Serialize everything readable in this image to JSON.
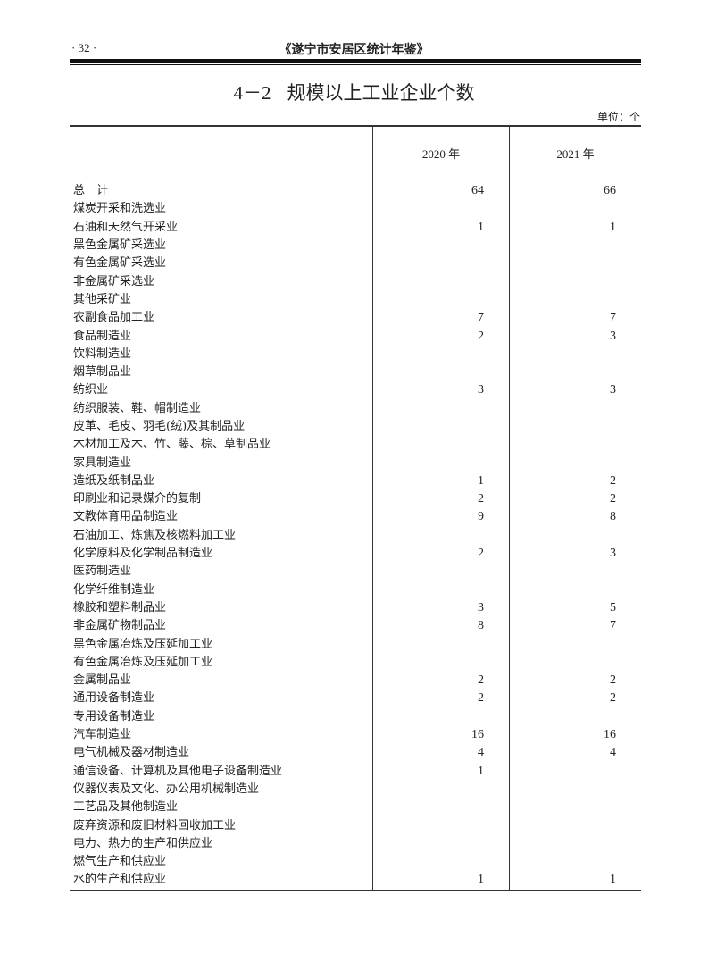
{
  "header": {
    "page_number": "· 32 ·",
    "book_title": "《遂宁市安居区统计年鉴》"
  },
  "table_title": {
    "number": "4－2",
    "text": "规模以上工业企业个数"
  },
  "unit": "单位：个",
  "columns": [
    "",
    "2020 年",
    "2021 年"
  ],
  "rows": [
    {
      "name": "总　计",
      "y2020": "64",
      "y2021": "66"
    },
    {
      "name": "煤炭开采和洗选业",
      "y2020": "",
      "y2021": ""
    },
    {
      "name": "石油和天然气开采业",
      "y2020": "1",
      "y2021": "1"
    },
    {
      "name": "黑色金属矿采选业",
      "y2020": "",
      "y2021": ""
    },
    {
      "name": "有色金属矿采选业",
      "y2020": "",
      "y2021": ""
    },
    {
      "name": "非金属矿采选业",
      "y2020": "",
      "y2021": ""
    },
    {
      "name": "其他采矿业",
      "y2020": "",
      "y2021": ""
    },
    {
      "name": "农副食品加工业",
      "y2020": "7",
      "y2021": "7"
    },
    {
      "name": "食品制造业",
      "y2020": "2",
      "y2021": "3"
    },
    {
      "name": "饮料制造业",
      "y2020": "",
      "y2021": ""
    },
    {
      "name": "烟草制品业",
      "y2020": "",
      "y2021": ""
    },
    {
      "name": "纺织业",
      "y2020": "3",
      "y2021": "3"
    },
    {
      "name": "纺织服装、鞋、帽制造业",
      "y2020": "",
      "y2021": ""
    },
    {
      "name": "皮革、毛皮、羽毛(绒)及其制品业",
      "y2020": "",
      "y2021": ""
    },
    {
      "name": "木材加工及木、竹、藤、棕、草制品业",
      "y2020": "",
      "y2021": ""
    },
    {
      "name": "家具制造业",
      "y2020": "",
      "y2021": ""
    },
    {
      "name": "造纸及纸制品业",
      "y2020": "1",
      "y2021": "2"
    },
    {
      "name": "印刷业和记录媒介的复制",
      "y2020": "2",
      "y2021": "2"
    },
    {
      "name": "文教体育用品制造业",
      "y2020": "9",
      "y2021": "8"
    },
    {
      "name": "石油加工、炼焦及核燃料加工业",
      "y2020": "",
      "y2021": ""
    },
    {
      "name": "化学原料及化学制品制造业",
      "y2020": "2",
      "y2021": "3"
    },
    {
      "name": "医药制造业",
      "y2020": "",
      "y2021": ""
    },
    {
      "name": "化学纤维制造业",
      "y2020": "",
      "y2021": ""
    },
    {
      "name": "橡胶和塑料制品业",
      "y2020": "3",
      "y2021": "5"
    },
    {
      "name": "非金属矿物制品业",
      "y2020": "8",
      "y2021": "7"
    },
    {
      "name": "黑色金属冶炼及压延加工业",
      "y2020": "",
      "y2021": ""
    },
    {
      "name": "有色金属冶炼及压延加工业",
      "y2020": "",
      "y2021": ""
    },
    {
      "name": "金属制品业",
      "y2020": "2",
      "y2021": "2"
    },
    {
      "name": "通用设备制造业",
      "y2020": "2",
      "y2021": "2"
    },
    {
      "name": "专用设备制造业",
      "y2020": "",
      "y2021": ""
    },
    {
      "name": "汽车制造业",
      "y2020": "16",
      "y2021": "16"
    },
    {
      "name": "电气机械及器材制造业",
      "y2020": "4",
      "y2021": "4"
    },
    {
      "name": "通信设备、计算机及其他电子设备制造业",
      "y2020": "1",
      "y2021": ""
    },
    {
      "name": "仪器仪表及文化、办公用机械制造业",
      "y2020": "",
      "y2021": ""
    },
    {
      "name": "工艺品及其他制造业",
      "y2020": "",
      "y2021": ""
    },
    {
      "name": "废弃资源和废旧材料回收加工业",
      "y2020": "",
      "y2021": ""
    },
    {
      "name": "电力、热力的生产和供应业",
      "y2020": "",
      "y2021": ""
    },
    {
      "name": "燃气生产和供应业",
      "y2020": "",
      "y2021": ""
    },
    {
      "name": "水的生产和供应业",
      "y2020": "1",
      "y2021": "1"
    }
  ]
}
